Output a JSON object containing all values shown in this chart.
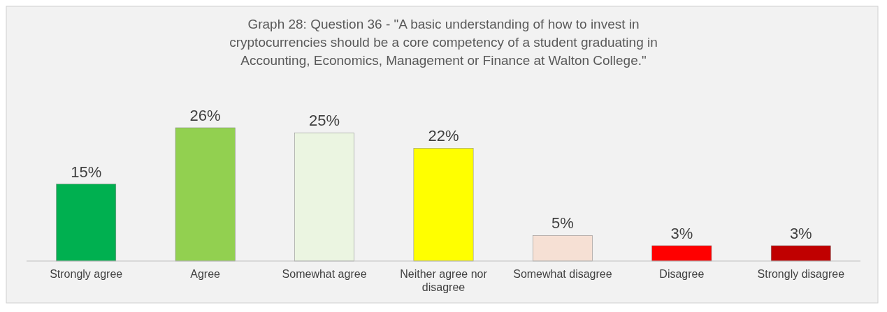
{
  "chart_data": {
    "type": "bar",
    "title": "Graph 28: Question 36 - \"A basic understanding of how to invest in cryptocurrencies should be a core competency of a student graduating in Accounting, Economics, Management or Finance at Walton College.\"",
    "categories": [
      "Strongly agree",
      "Agree",
      "Somewhat agree",
      "Neither agree nor disagree",
      "Somewhat disagree",
      "Disagree",
      "Strongly disagree"
    ],
    "values": [
      15,
      26,
      25,
      22,
      5,
      3,
      3
    ],
    "value_labels": [
      "15%",
      "26%",
      "25%",
      "22%",
      "5%",
      "3%",
      "3%"
    ],
    "colors": [
      "#00b050",
      "#92d050",
      "#ebf5e1",
      "#ffff00",
      "#f6e0d4",
      "#ff0000",
      "#c00000"
    ],
    "relative": false
  }
}
